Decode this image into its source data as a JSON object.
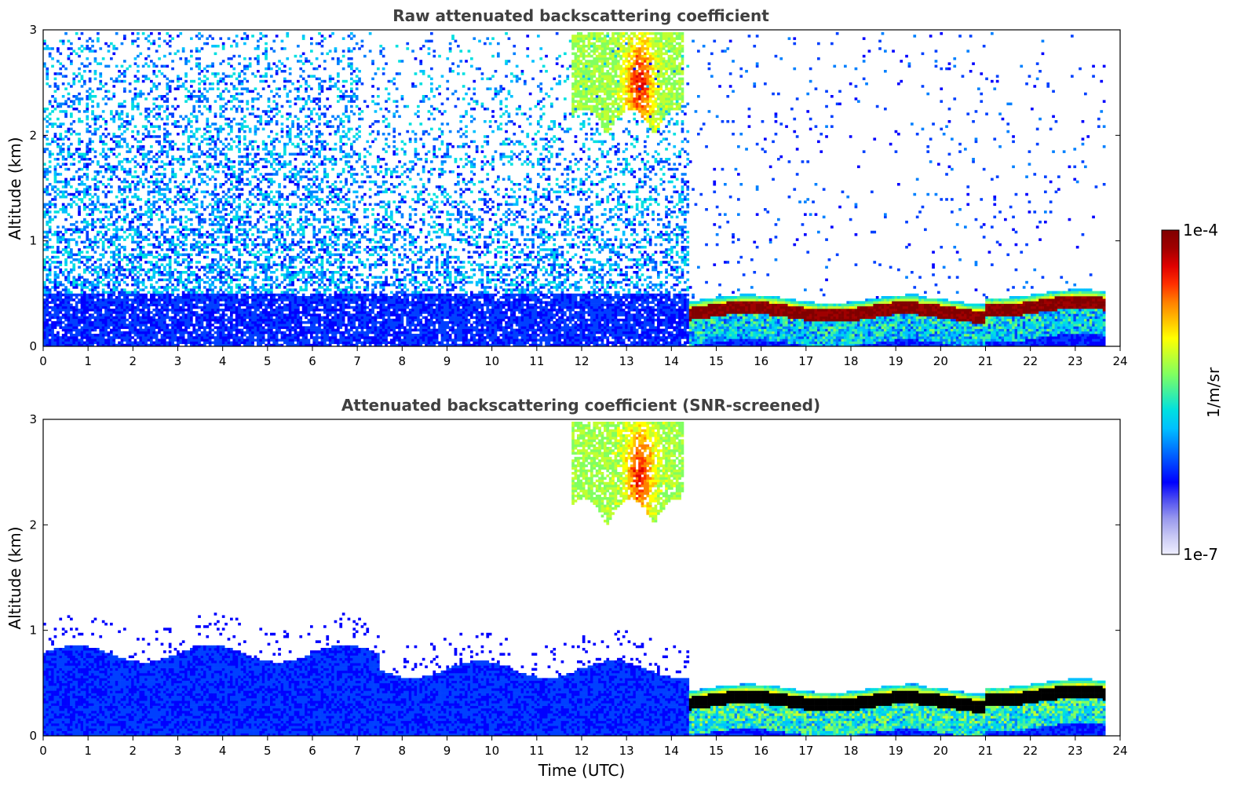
{
  "chart_data": [
    {
      "type": "heatmap",
      "title": "Raw attenuated backscattering coefficient",
      "xlabel": "",
      "ylabel": "Altitude (km)",
      "xlim": [
        0,
        24
      ],
      "ylim": [
        0,
        3
      ],
      "x_ticks": [
        "0",
        "1",
        "2",
        "3",
        "4",
        "5",
        "6",
        "7",
        "8",
        "9",
        "10",
        "11",
        "12",
        "13",
        "14",
        "15",
        "16",
        "17",
        "18",
        "19",
        "20",
        "21",
        "22",
        "23",
        "24"
      ],
      "y_ticks": [
        "0",
        "1",
        "2",
        "3"
      ],
      "features": [
        {
          "x": [
            0,
            14.4
          ],
          "altitude_km": [
            0,
            0.6
          ],
          "level": "low-to-mid (blue)",
          "note": "noisy aerosol layer"
        },
        {
          "x": [
            0,
            14.4
          ],
          "altitude_km": [
            0.6,
            3
          ],
          "level": "scattered noise"
        },
        {
          "x": [
            11.8,
            14.3
          ],
          "altitude_km": [
            2,
            3
          ],
          "level": "mid (green-yellow, red core near 13.3 h)"
        },
        {
          "x": [
            14.4,
            23.7
          ],
          "altitude_km": [
            0.25,
            0.45
          ],
          "level": "high (dark red)",
          "note": "cloud layer"
        }
      ]
    },
    {
      "type": "heatmap",
      "title": "Attenuated backscattering coefficient (SNR-screened)",
      "xlabel": "Time (UTC)",
      "ylabel": "Altitude (km)",
      "xlim": [
        0,
        24
      ],
      "ylim": [
        0,
        3
      ],
      "x_ticks": [
        "0",
        "1",
        "2",
        "3",
        "4",
        "5",
        "6",
        "7",
        "8",
        "9",
        "10",
        "11",
        "12",
        "13",
        "14",
        "15",
        "16",
        "17",
        "18",
        "19",
        "20",
        "21",
        "22",
        "23",
        "24"
      ],
      "y_ticks": [
        "0",
        "1",
        "2",
        "3"
      ],
      "features": [
        {
          "x": [
            0,
            14.4
          ],
          "altitude_km": [
            0,
            0.9
          ],
          "level": "low (blue)",
          "note": "boundary layer aerosol"
        },
        {
          "x": [
            11.8,
            14.3
          ],
          "altitude_km": [
            2,
            3
          ],
          "level": "mid (green-yellow)"
        },
        {
          "x": [
            14.4,
            23.7
          ],
          "altitude_km": [
            0.25,
            0.45
          ],
          "level": "saturated (black)",
          "note": "cloud layer"
        }
      ]
    }
  ],
  "colorbar": {
    "max_label": "1e-4",
    "min_label": "1e-7",
    "unit_label": "1/m/sr",
    "colors": [
      "#eeeeff",
      "#c8c8f4",
      "#9898ee",
      "#5050f0",
      "#0000ff",
      "#0040ff",
      "#0080ff",
      "#00c0ff",
      "#00e0e0",
      "#40f0a0",
      "#80ff60",
      "#c0ff30",
      "#ffff00",
      "#ffc000",
      "#ff8000",
      "#ff3000",
      "#e00000",
      "#a00000",
      "#800000"
    ]
  }
}
